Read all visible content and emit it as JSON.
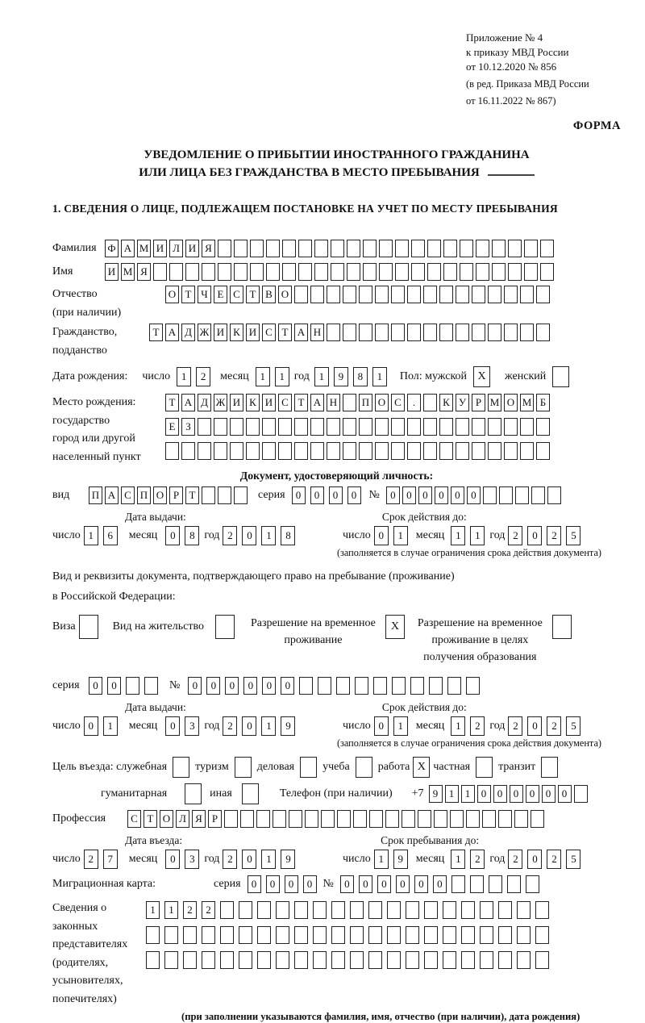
{
  "header": {
    "line1": "Приложение № 4",
    "line2": "к приказу МВД России",
    "line3": "от 10.12.2020 № 856",
    "line4": "(в ред. Приказа МВД России",
    "line5": "от 16.11.2022 № 867)",
    "form_label": "ФОРМА"
  },
  "title": {
    "line1": "УВЕДОМЛЕНИЕ О ПРИБЫТИИ ИНОСТРАННОГО ГРАЖДАНИНА",
    "line2": "ИЛИ ЛИЦА БЕЗ ГРАЖДАНСТВА В МЕСТО ПРЕБЫВАНИЯ"
  },
  "section1_heading": "1. СВЕДЕНИЯ О ЛИЦЕ, ПОДЛЕЖАЩЕМ ПОСТАНОВКЕ НА УЧЕТ ПО МЕСТУ ПРЕБЫВАНИЯ",
  "labels": {
    "surname": "Фамилия",
    "name": "Имя",
    "patronymic1": "Отчество",
    "patronymic2": "(при наличии)",
    "citizenship1": "Гражданство,",
    "citizenship2": "подданство",
    "birth_date": "Дата рождения:",
    "day": "число",
    "month": "месяц",
    "year": "год",
    "sex": "Пол: мужской",
    "female": "женский",
    "birth_place1": "Место рождения:",
    "birth_place2": "государство",
    "birth_place3": "город или другой",
    "birth_place4": "населенный пункт",
    "identity_doc_heading": "Документ, удостоверяющий личность:",
    "doc_kind": "вид",
    "series": "серия",
    "number": "№",
    "issue_date": "Дата выдачи:",
    "valid_until": "Срок действия до:",
    "valid_note": "(заполняется в случае ограничения срока действия документа)",
    "residence_doc1": "Вид и реквизиты документа, подтверждающего право на пребывание (проживание)",
    "residence_doc2": "в Российской Федерации:",
    "visa": "Виза",
    "residence_permit": "Вид на жительство",
    "temp_permit1": "Разрешение на временное",
    "temp_permit2": "проживание",
    "edu_permit1": "Разрешение на временное",
    "edu_permit2": "проживание в целях",
    "edu_permit3": "получения образования",
    "entry_purpose": "Цель въезда: служебная",
    "purpose_tourism": "туризм",
    "purpose_business": "деловая",
    "purpose_study": "учеба",
    "purpose_work": "работа",
    "purpose_private": "частная",
    "purpose_transit": "транзит",
    "purpose_humanitarian": "гуманитарная",
    "purpose_other": "иная",
    "phone": "Телефон (при наличии)",
    "phone_prefix": "+7",
    "profession": "Профессия",
    "entry_date": "Дата въезда:",
    "stay_until": "Срок пребывания до:",
    "migration_card": "Миграционная карта:",
    "legal1": "Сведения о",
    "legal2": "законных",
    "legal3": "представителях",
    "legal4": "(родителях,",
    "legal5": "усыновителях,",
    "legal6": "попечителях)",
    "legal_note": "(при заполнении указываются фамилия, имя, отчество (при наличии), дата рождения)"
  },
  "values": {
    "surname": {
      "value": "ФАМИЛИЯ",
      "count": 28
    },
    "name": {
      "value": "ИМЯ",
      "count": 28
    },
    "patronymic": {
      "value": "ОТЧЕСТВО",
      "count": 24
    },
    "citizenship": {
      "value": "ТАДЖИКИСТАН",
      "count": 25
    },
    "birth_day": "12",
    "birth_month": "11",
    "birth_year": "1981",
    "sex_male_checked": true,
    "sex_female_checked": false,
    "birth_place_row1": {
      "value": "ТАДЖИКИСТАН ПОС. КУРМОМБ",
      "count": 24
    },
    "birth_place_row2": {
      "value": "ЕЗ",
      "count": 24
    },
    "birth_place_row3": {
      "value": "",
      "count": 24
    },
    "doc_kind": {
      "value": "ПАСПОРТ",
      "count": 10
    },
    "doc_series": {
      "value": "0000",
      "count": 4
    },
    "doc_number": {
      "value": "000000",
      "count": 11
    },
    "doc_issue_day": "16",
    "doc_issue_month": "08",
    "doc_issue_year": "2018",
    "doc_valid_day": "01",
    "doc_valid_month": "11",
    "doc_valid_year": "2025",
    "visa_checked": false,
    "residence_permit_checked": false,
    "temp_permit_checked": true,
    "edu_permit_checked": false,
    "permit_series": {
      "value": "00",
      "count": 4
    },
    "permit_number": {
      "value": "000000",
      "count": 16
    },
    "permit_issue_day": "01",
    "permit_issue_month": "03",
    "permit_issue_year": "2019",
    "permit_valid_day": "01",
    "permit_valid_month": "12",
    "permit_valid_year": "2025",
    "purpose_official_checked": false,
    "purpose_tourism_checked": false,
    "purpose_business_checked": false,
    "purpose_study_checked": false,
    "purpose_work_checked": true,
    "purpose_private_checked": false,
    "purpose_transit_checked": false,
    "purpose_humanitarian_checked": false,
    "purpose_other_checked": false,
    "phone": {
      "value": "911000000",
      "count": 10
    },
    "profession": {
      "value": "СТОЛЯР",
      "count": 26
    },
    "entry_day": "27",
    "entry_month": "03",
    "entry_year": "2019",
    "stay_day": "19",
    "stay_month": "12",
    "stay_year": "2025",
    "mig_series": {
      "value": "0000",
      "count": 4
    },
    "mig_number": {
      "value": "000000",
      "count": 11
    },
    "legal_row1": {
      "value": "1122",
      "count": 22
    },
    "legal_row2": {
      "value": "",
      "count": 22
    },
    "legal_row3": {
      "value": "",
      "count": 22
    }
  }
}
